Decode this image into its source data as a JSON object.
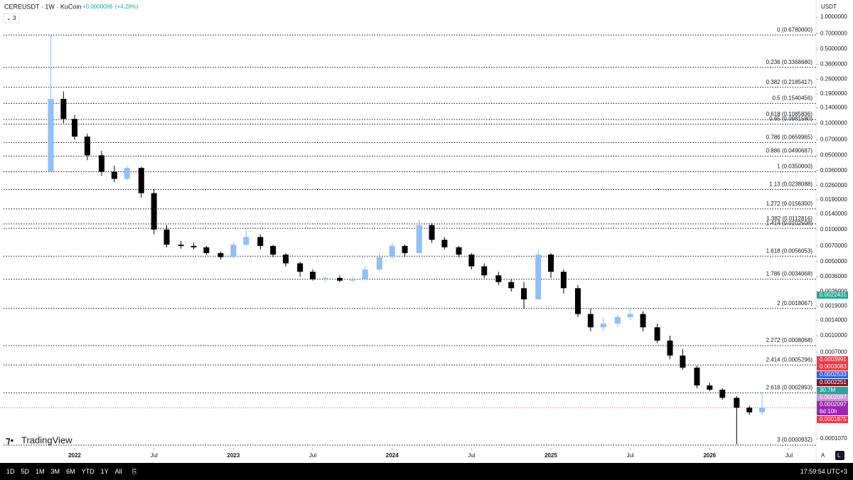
{
  "chart_data": {
    "type": "candlestick",
    "title": "CEREUSDT · 1W · KuCoin",
    "change": "+0.0000086",
    "change_pct": "(+4.28%)",
    "indicator_count": "3",
    "currency": "USDT",
    "brand": "TradingView",
    "log_scale": true,
    "up_color": "#90bff9",
    "down_color": "#000000",
    "x": [
      2021.85,
      2021.93,
      2022.0,
      2022.08,
      2022.17,
      2022.25,
      2022.33,
      2022.42,
      2022.5,
      2022.58,
      2022.67,
      2022.75,
      2022.83,
      2022.92,
      2023.0,
      2023.08,
      2023.17,
      2023.25,
      2023.33,
      2023.42,
      2023.5,
      2023.58,
      2023.67,
      2023.75,
      2023.83,
      2023.92,
      2024.0,
      2024.08,
      2024.17,
      2024.25,
      2024.33,
      2024.42,
      2024.5,
      2024.58,
      2024.67,
      2024.75,
      2024.83,
      2024.92,
      2025.0,
      2025.08,
      2025.17,
      2025.25,
      2025.33,
      2025.42,
      2025.5,
      2025.58,
      2025.67,
      2025.75,
      2025.83,
      2025.92,
      2026.0,
      2026.08,
      2026.17,
      2026.25,
      2026.33
    ],
    "open": [
      0.035,
      0.17,
      0.11,
      0.075,
      0.05,
      0.035,
      0.03,
      0.038,
      0.022,
      0.01,
      0.0072,
      0.007,
      0.0068,
      0.006,
      0.0055,
      0.0072,
      0.0085,
      0.007,
      0.0058,
      0.0048,
      0.004,
      0.0034,
      0.0035,
      0.0033,
      0.0034,
      0.0042,
      0.0055,
      0.007,
      0.006,
      0.011,
      0.008,
      0.0068,
      0.0058,
      0.0045,
      0.0037,
      0.0032,
      0.0028,
      0.0022,
      0.0058,
      0.004,
      0.0028,
      0.0016,
      0.0012,
      0.0013,
      0.0015,
      0.0016,
      0.0012,
      0.0009,
      0.00065,
      0.0005,
      0.00034,
      0.00031,
      0.00026,
      0.00021,
      0.00019
    ],
    "high": [
      0.678,
      0.2,
      0.12,
      0.08,
      0.055,
      0.04,
      0.04,
      0.039,
      0.024,
      0.011,
      0.0078,
      0.0075,
      0.007,
      0.0062,
      0.0075,
      0.0105,
      0.009,
      0.0072,
      0.006,
      0.005,
      0.0042,
      0.0036,
      0.0037,
      0.0036,
      0.0045,
      0.006,
      0.0075,
      0.0072,
      0.0125,
      0.0115,
      0.0085,
      0.007,
      0.006,
      0.0048,
      0.004,
      0.0034,
      0.0032,
      0.0065,
      0.006,
      0.0042,
      0.003,
      0.0018,
      0.0015,
      0.0016,
      0.0018,
      0.0017,
      0.0013,
      0.001,
      0.00075,
      0.00052,
      0.00036,
      0.00032,
      0.00027,
      0.00022,
      0.00029
    ],
    "low": [
      0.035,
      0.1,
      0.07,
      0.045,
      0.032,
      0.028,
      0.029,
      0.02,
      0.009,
      0.0068,
      0.0066,
      0.0065,
      0.0058,
      0.0052,
      0.0054,
      0.007,
      0.0065,
      0.0055,
      0.0045,
      0.0036,
      0.0033,
      0.0032,
      0.0032,
      0.0032,
      0.0033,
      0.0041,
      0.0053,
      0.0055,
      0.006,
      0.0075,
      0.0065,
      0.0055,
      0.0042,
      0.0035,
      0.003,
      0.0026,
      0.0018,
      0.0022,
      0.0035,
      0.0025,
      0.0015,
      0.0011,
      0.0011,
      0.0012,
      0.0014,
      0.0011,
      0.00085,
      0.0006,
      0.00048,
      0.00032,
      0.0003,
      0.00025,
      9.5e-05,
      0.00018,
      0.00018
    ],
    "close": [
      0.17,
      0.11,
      0.075,
      0.05,
      0.035,
      0.03,
      0.038,
      0.022,
      0.01,
      0.0072,
      0.007,
      0.0068,
      0.006,
      0.0055,
      0.0072,
      0.0085,
      0.007,
      0.0058,
      0.0048,
      0.004,
      0.0034,
      0.0035,
      0.0033,
      0.0034,
      0.0042,
      0.0055,
      0.007,
      0.006,
      0.011,
      0.008,
      0.0068,
      0.0058,
      0.0045,
      0.0037,
      0.0032,
      0.0028,
      0.0022,
      0.0058,
      0.004,
      0.0028,
      0.0016,
      0.0012,
      0.0013,
      0.0015,
      0.0016,
      0.0012,
      0.0009,
      0.00065,
      0.0005,
      0.00034,
      0.00031,
      0.00026,
      0.00021,
      0.00019,
      0.00021
    ],
    "xlim": [
      2021.53,
      2026.67
    ],
    "xticks": [
      {
        "value": 2022,
        "label": "2022"
      },
      {
        "value": 2022.5,
        "label": "Jul"
      },
      {
        "value": 2023,
        "label": "2023"
      },
      {
        "value": 2023.5,
        "label": "Jul"
      },
      {
        "value": 2024,
        "label": "2024"
      },
      {
        "value": 2024.5,
        "label": "Jul"
      },
      {
        "value": 2025,
        "label": "2025"
      },
      {
        "value": 2025.5,
        "label": "Jul"
      },
      {
        "value": 2026,
        "label": "2026"
      },
      {
        "value": 2026.5,
        "label": "Jul"
      }
    ],
    "ylim": [
      8.76e-05,
      1.45
    ],
    "yticks": [
      {
        "value": 1,
        "label": "1.0000000"
      },
      {
        "value": 0.7,
        "label": "0.7000000"
      },
      {
        "value": 0.5,
        "label": "0.5000000"
      },
      {
        "value": 0.36,
        "label": "0.3600000"
      },
      {
        "value": 0.26,
        "label": "0.2600000"
      },
      {
        "value": 0.19,
        "label": "0.1900000"
      },
      {
        "value": 0.14,
        "label": "0.1400000"
      },
      {
        "value": 0.1,
        "label": "0.1000000"
      },
      {
        "value": 0.07,
        "label": "0.0700000"
      },
      {
        "value": 0.05,
        "label": "0.0500000"
      },
      {
        "value": 0.036,
        "label": "0.0360000"
      },
      {
        "value": 0.026,
        "label": "0.0260000"
      },
      {
        "value": 0.019,
        "label": "0.0190000"
      },
      {
        "value": 0.014,
        "label": "0.0140000"
      },
      {
        "value": 0.01,
        "label": "0.0100000"
      },
      {
        "value": 0.007,
        "label": "0.0070000"
      },
      {
        "value": 0.005,
        "label": "0.0050000"
      },
      {
        "value": 0.0036,
        "label": "0.0036000"
      },
      {
        "value": 0.0026,
        "label": "0.0026000"
      },
      {
        "value": 0.0019,
        "label": "0.0019000"
      },
      {
        "value": 0.0014,
        "label": "0.0014000"
      },
      {
        "value": 0.001,
        "label": "0.0010000"
      },
      {
        "value": 0.0007,
        "label": "0.0007000"
      },
      {
        "value": 0.000107,
        "label": "0.0001070"
      }
    ],
    "fib_levels": [
      {
        "label": "0 (0.6780000)",
        "value": 0.678
      },
      {
        "label": "0.236 (0.3368680)",
        "value": 0.336868
      },
      {
        "label": "0.382 (0.2185417)",
        "value": 0.2185417
      },
      {
        "label": "0.5 (0.1540456)",
        "value": 0.1540456
      },
      {
        "label": "0.618 (0.1085836)",
        "value": 0.1085836
      },
      {
        "label": "0.65 (0.0981580)",
        "value": 0.098158
      },
      {
        "label": "0.786 (0.0659965)",
        "value": 0.0659965
      },
      {
        "label": "0.886 (0.0490687)",
        "value": 0.0490687
      },
      {
        "label": "1 (0.0350000)",
        "value": 0.035
      },
      {
        "label": "1.13 (0.0238088)",
        "value": 0.0238088
      },
      {
        "label": "1.272 (0.0156300)",
        "value": 0.01563
      },
      {
        "label": "1.382 (0.0112816)",
        "value": 0.0112816
      },
      {
        "label": "1.414 (0.0102508)",
        "value": 0.0102508
      },
      {
        "label": "1.618 (0.0056053)",
        "value": 0.0056053
      },
      {
        "label": "1.786 (0.0034068)",
        "value": 0.0034068
      },
      {
        "label": "2 (0.0018067)",
        "value": 0.0018067
      },
      {
        "label": "2.272 (0.0008068)",
        "value": 0.0008068
      },
      {
        "label": "2.414 (0.0005296)",
        "value": 0.0005296
      },
      {
        "label": "2.618 (0.0002893)",
        "value": 0.0002893
      },
      {
        "label": "3 (0.0000932)",
        "value": 9.32e-05
      }
    ],
    "price_line": 0.0002097,
    "badges": [
      {
        "text": "0.0022431",
        "color": "#22ab94"
      },
      {
        "text": "0.0003991",
        "color": "#f23645"
      },
      {
        "text": "0.0003083",
        "color": "#f23645"
      },
      {
        "text": "0.0002533",
        "color": "#2962ff"
      },
      {
        "text": "0.0002251",
        "color": "#801922"
      },
      {
        "text": "30.7M",
        "color": "#26a69a"
      },
      {
        "text": "0.0002097",
        "color": "#ce93d8"
      },
      {
        "text": "0.0002097",
        "color": "#9c27b0"
      },
      {
        "text": "6d 10h",
        "color": "#9c27b0"
      },
      {
        "text": "0.0001875",
        "color": "#f23645"
      }
    ]
  },
  "toolbar": {
    "ranges": [
      "1D",
      "5D",
      "1M",
      "3M",
      "6M",
      "YTD",
      "1Y",
      "All"
    ],
    "clock": "17:59:54 UTC+3",
    "auto": "A",
    "log": "L"
  }
}
